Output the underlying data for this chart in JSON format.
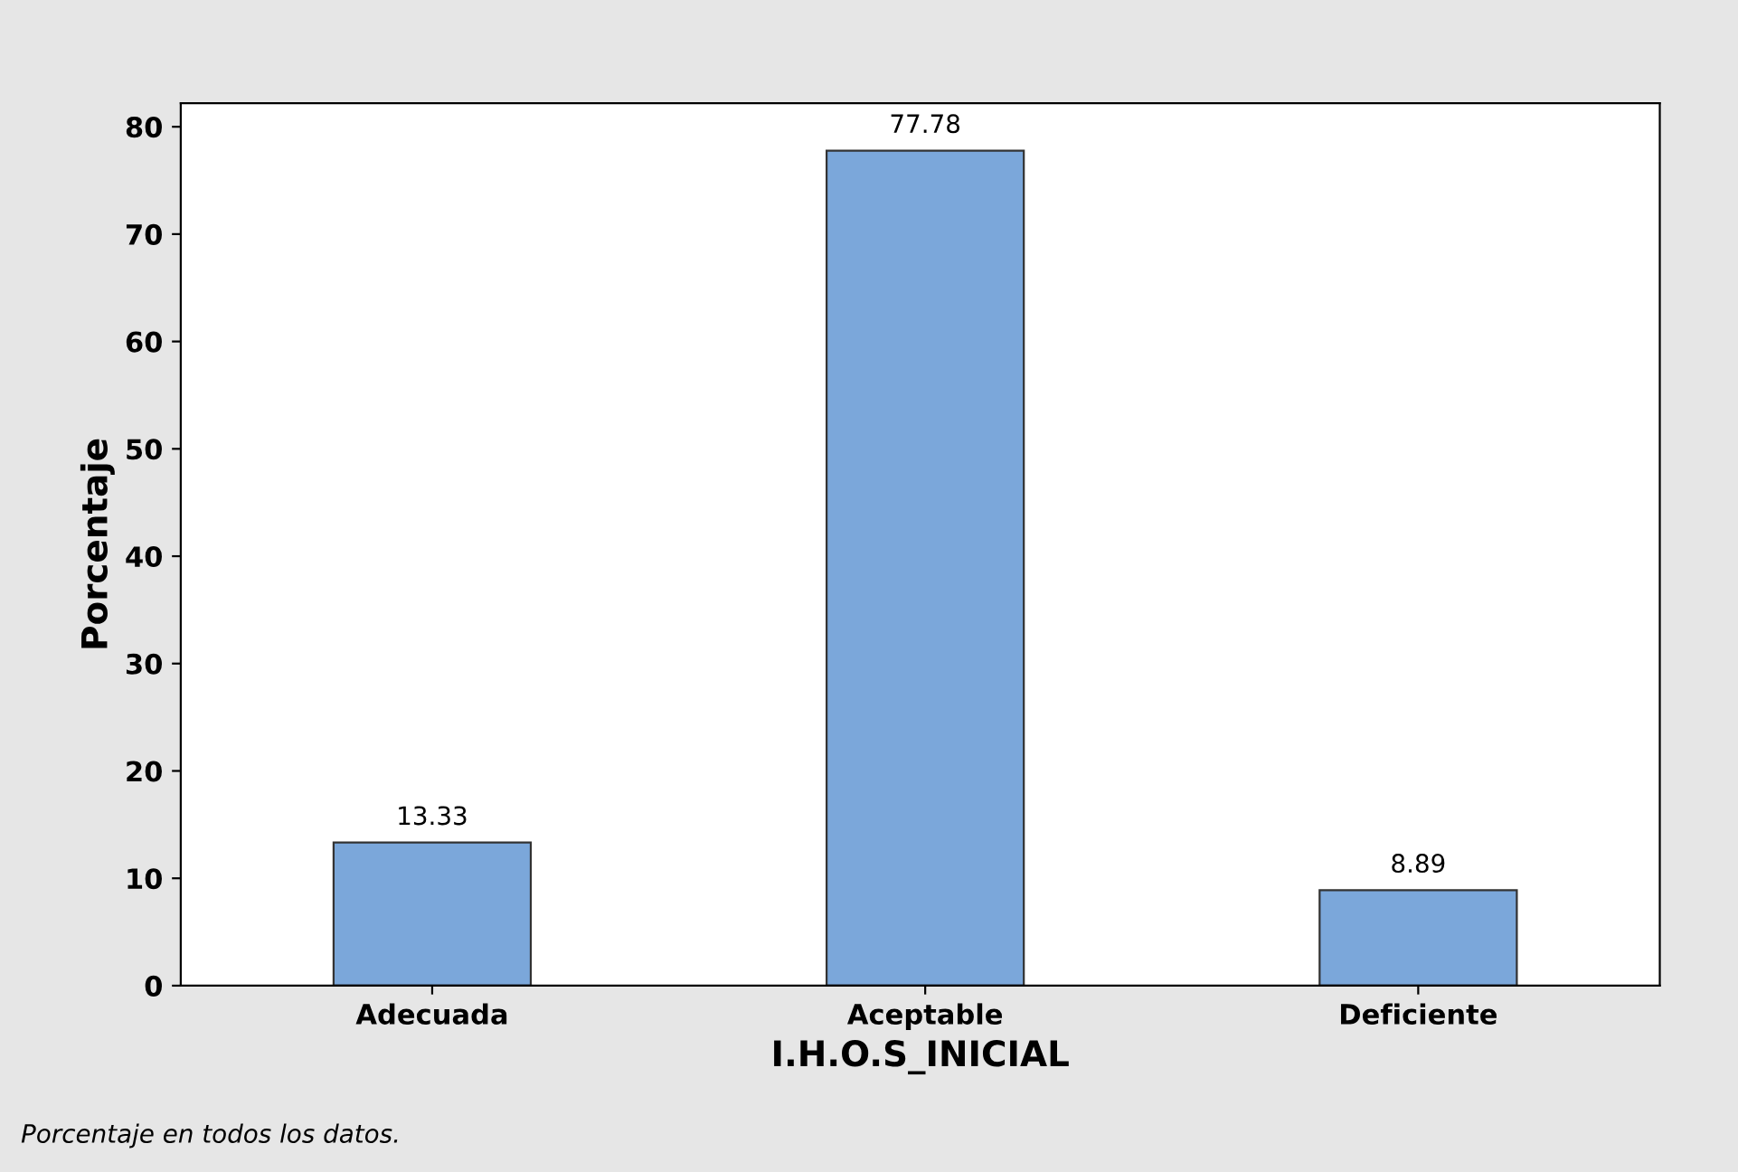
{
  "chart_data": {
    "type": "bar",
    "xlabel": "I.H.O.S_INICIAL",
    "ylabel": "Porcentaje",
    "categories": [
      "Adecuada",
      "Aceptable",
      "Deficiente"
    ],
    "values": [
      13.33,
      77.78,
      8.89
    ],
    "color": "#7ba7da",
    "ylim": [
      0,
      82.2
    ],
    "yticks": [
      0,
      10,
      20,
      30,
      40,
      50,
      60,
      70,
      80
    ],
    "grid": false,
    "data_labels": true,
    "annotations": [
      "Porcentaje en todos los datos."
    ]
  }
}
